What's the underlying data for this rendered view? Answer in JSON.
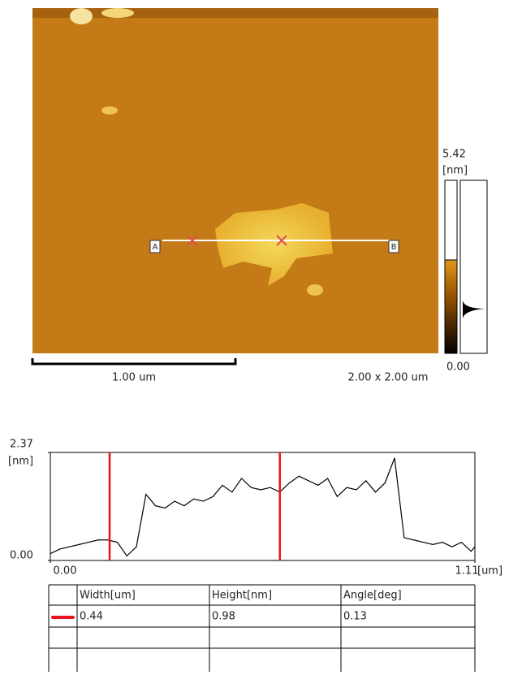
{
  "image": {
    "scale_max": "5.42",
    "scale_unit": "[nm]",
    "scale_min": "0.00",
    "scale_bar": "1.00 um",
    "scan_size": "2.00 x 2.00 um",
    "marker_start": "A",
    "marker_end": "B"
  },
  "profile": {
    "type": "line",
    "color": "#000000",
    "cursor_color": "#e8141b",
    "x": [
      0,
      0.025,
      0.05,
      0.075,
      0.1,
      0.125,
      0.15,
      0.175,
      0.2,
      0.225,
      0.25,
      0.275,
      0.3,
      0.325,
      0.35,
      0.375,
      0.4,
      0.425,
      0.45,
      0.475,
      0.5,
      0.525,
      0.55,
      0.575,
      0.6,
      0.625,
      0.65,
      0.675,
      0.7,
      0.725,
      0.75,
      0.775,
      0.8,
      0.825,
      0.85,
      0.875,
      0.9,
      0.925,
      0.95,
      0.975,
      1.0,
      1.025,
      1.05,
      1.075,
      1.1,
      1.11
    ],
    "values": [
      0.15,
      0.25,
      0.3,
      0.35,
      0.4,
      0.45,
      0.45,
      0.4,
      0.1,
      0.3,
      1.45,
      1.2,
      1.15,
      1.3,
      1.2,
      1.35,
      1.3,
      1.4,
      1.65,
      1.5,
      1.8,
      1.6,
      1.55,
      1.6,
      1.5,
      1.7,
      1.85,
      1.75,
      1.65,
      1.8,
      1.4,
      1.6,
      1.55,
      1.75,
      1.5,
      1.7,
      2.25,
      0.5,
      0.45,
      0.4,
      0.35,
      0.4,
      0.3,
      0.4,
      0.2,
      0.3
    ],
    "cursors": [
      0.155,
      0.6
    ],
    "xlim": [
      0,
      1.11
    ],
    "ylim": [
      0,
      2.37
    ],
    "xticks": [
      {
        "value": 0,
        "label": "0.00"
      },
      {
        "value": 1.11,
        "label": "1.11"
      }
    ],
    "yticks": [
      {
        "value": 0,
        "label": "0.00"
      },
      {
        "value": 2.37,
        "label": "2.37"
      }
    ],
    "x_unit": "[um]",
    "y_unit": "[nm]"
  },
  "table": {
    "columns": [
      "Width[um]",
      "Height[nm]",
      "Angle[deg]"
    ],
    "rows": [
      [
        "0.44",
        "0.98",
        "0.13"
      ]
    ]
  }
}
